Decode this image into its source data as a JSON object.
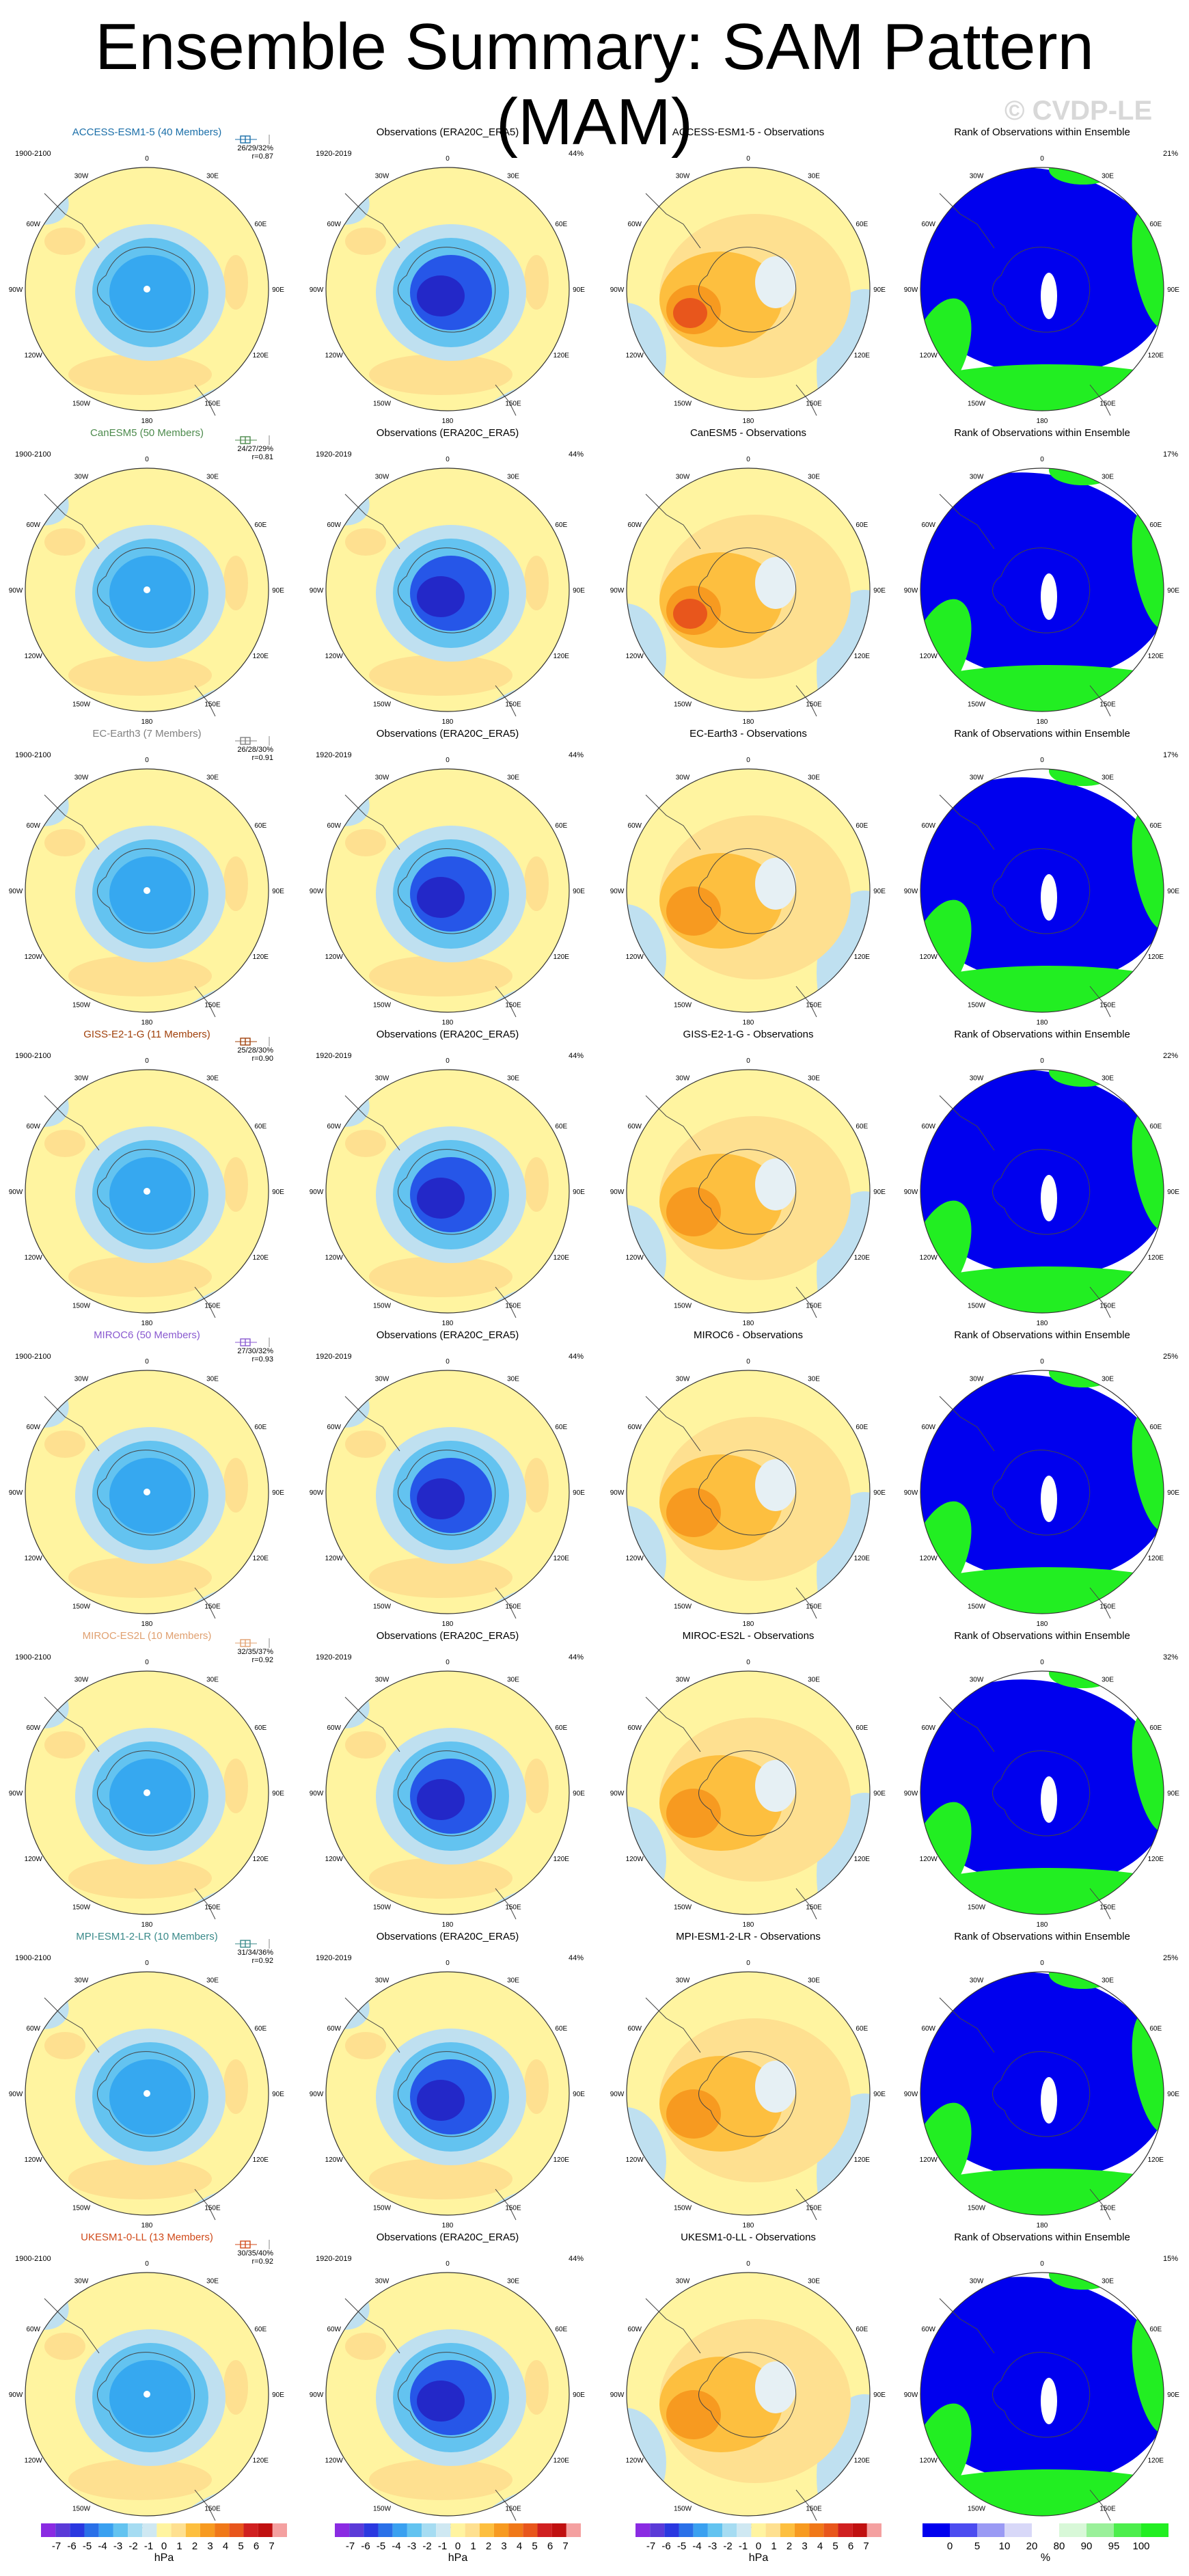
{
  "header": {
    "title": "Ensemble Summary: SAM Pattern (MAM)",
    "watermark": "© CVDP-LE"
  },
  "colors": {
    "ocean_yellow": "#fff4a0",
    "neg_light": "#bfe0f0",
    "neg_mid": "#63c3f0",
    "neg_dark": "#2656e8",
    "neg_deep": "#2328c8",
    "pos1": "#fee090",
    "pos2": "#fdbf3f",
    "pos3": "#f79a20",
    "pos4": "#e8561c",
    "rank_blue": "#0000ee",
    "rank_green": "#22ee22",
    "rank_white": "#ffffff"
  },
  "column_titles": {
    "obs": "Observations (ERA20C_ERA5)",
    "diff_suffix": " - Observations",
    "rank": "Rank of Observations within Ensemble"
  },
  "model_years": "1900-2100",
  "obs_years": "1920-2019",
  "obs_pct": "44%",
  "lon_labels": [
    "0",
    "30E",
    "60E",
    "90E",
    "120E",
    "150E",
    "180",
    "150W",
    "120W",
    "90W",
    "60W",
    "30W"
  ],
  "rows": [
    {
      "model": "ACCESS-ESM1-5",
      "members": "ACCESS-ESM1-5 (40 Members)",
      "color": "#1a6ea8",
      "stats": "26/29/32%",
      "r": "r=0.87",
      "rank_pct": "21%"
    },
    {
      "model": "CanESM5",
      "members": "CanESM5 (50 Members)",
      "color": "#4c8a4c",
      "stats": "24/27/29%",
      "r": "r=0.81",
      "rank_pct": "17%"
    },
    {
      "model": "EC-Earth3",
      "members": "EC-Earth3 (7 Members)",
      "color": "#808080",
      "stats": "26/28/30%",
      "r": "r=0.91",
      "rank_pct": "17%"
    },
    {
      "model": "GISS-E2-1-G",
      "members": "GISS-E2-1-G (11 Members)",
      "color": "#a0400a",
      "stats": "25/28/30%",
      "r": "r=0.90",
      "rank_pct": "22%"
    },
    {
      "model": "MIROC6",
      "members": "MIROC6 (50 Members)",
      "color": "#8a5ad0",
      "stats": "27/30/32%",
      "r": "r=0.93",
      "rank_pct": "25%"
    },
    {
      "model": "MIROC-ES2L",
      "members": "MIROC-ES2L (10 Members)",
      "color": "#e0a070",
      "stats": "32/35/37%",
      "r": "r=0.92",
      "rank_pct": "32%"
    },
    {
      "model": "MPI-ESM1-2-LR",
      "members": "MPI-ESM1-2-LR (10 Members)",
      "color": "#3a8a8a",
      "stats": "31/34/36%",
      "r": "r=0.92",
      "rank_pct": "25%"
    },
    {
      "model": "UKESM1-0-LL",
      "members": "UKESM1-0-LL (13 Members)",
      "color": "#d04a1a",
      "stats": "30/35/40%",
      "r": "r=0.92",
      "rank_pct": "15%"
    }
  ],
  "chart_data": {
    "type": "heatmap",
    "title": "Ensemble Summary: SAM Pattern (MAM)",
    "map_projection": "south polar stereographic",
    "colorbar_hpa": {
      "unit": "hPa",
      "tick_labels": [
        "-7",
        "-6",
        "-5",
        "-4",
        "-3",
        "-2",
        "-1",
        "0",
        "1",
        "2",
        "3",
        "4",
        "5",
        "6",
        "7"
      ],
      "colors": [
        "#8a2be2",
        "#5a3ad8",
        "#2a38e0",
        "#2a70e8",
        "#3aa0f0",
        "#63c3f0",
        "#a6dcf2",
        "#cfe8f2",
        "#fff4a0",
        "#fee090",
        "#fdbf3f",
        "#f79a20",
        "#f07818",
        "#e8561c",
        "#d02020",
        "#c01010",
        "#f4a0a0"
      ]
    },
    "colorbar_rank": {
      "unit": "%",
      "tick_labels": [
        "0",
        "5",
        "10",
        "20",
        "80",
        "90",
        "95",
        "100"
      ],
      "colors": [
        "#0000ee",
        "#4c4cf0",
        "#9a9af4",
        "#d8d8f8",
        "#ffffff",
        "#d8f8d8",
        "#9af09a",
        "#4cee4c",
        "#22ee22"
      ]
    }
  }
}
